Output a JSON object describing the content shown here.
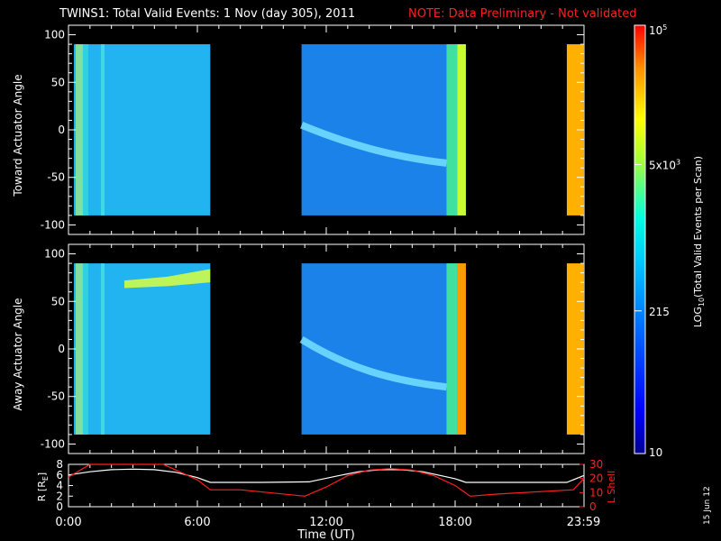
{
  "title": "TWINS1: Total Valid Events:  1 Nov (day 305), 2011",
  "note": "NOTE: Data Preliminary - Not validated",
  "date_stamp": "15 Jun 12",
  "colors": {
    "note": "#ff2020",
    "line_white": "#ffffff",
    "line_red": "#ff2020",
    "background": "#000000"
  },
  "chart_data": [
    {
      "type": "heatmap",
      "ylabel": "Toward Actuator Angle",
      "ylim": [
        -110,
        110
      ],
      "yticks": [
        100,
        50,
        0,
        -50,
        -100
      ],
      "xlim_hours": [
        0,
        24
      ],
      "data_blocks_hours": [
        [
          0.25,
          6.6
        ],
        [
          10.85,
          18.5
        ],
        [
          23.2,
          24
        ]
      ],
      "features": "Yellow-green band near 0:30 UT; trough near 0 deg from ~11:00 declining to about -35 deg by 18:00 UT; bright orange block from 23:15 UT"
    },
    {
      "type": "heatmap",
      "ylabel": "Away Actuator Angle",
      "ylim": [
        -110,
        110
      ],
      "yticks": [
        100,
        50,
        0,
        -50,
        -100
      ],
      "xlim_hours": [
        0,
        24
      ],
      "data_blocks_hours": [
        [
          0.25,
          6.6
        ],
        [
          10.85,
          18.5
        ],
        [
          23.2,
          24
        ]
      ],
      "features": "Yellow band near +70-80 deg from 2:00 to 6:30 UT; trough from ~0 deg at 11:00 declining to about -40 deg by 18:00 UT; orange block from 23:15 UT"
    },
    {
      "type": "line",
      "xlabel": "Time (UT)",
      "xtick_labels": [
        "0:00",
        "6:00",
        "12:00",
        "18:00",
        "23:59"
      ],
      "xtick_hours": [
        0,
        6,
        12,
        18,
        23.98
      ],
      "ylabel_left": "R [Re]",
      "ylim_left": [
        0,
        8
      ],
      "yticks_left": [
        0,
        2,
        4,
        6,
        8
      ],
      "ylabel_right": "L Shell",
      "ylim_right": [
        0,
        30
      ],
      "yticks_right": [
        0,
        10,
        20,
        30
      ],
      "series": [
        {
          "name": "R [Re]",
          "axis": "left",
          "color": "#ffffff",
          "x": [
            0,
            1,
            2,
            3,
            4,
            5,
            6,
            6.6,
            9,
            11.2,
            12.5,
            13.5,
            14.5,
            15.5,
            16.5,
            18,
            18.5,
            20,
            22,
            23.2,
            24
          ],
          "y": [
            6.0,
            6.6,
            7.0,
            7.1,
            7.0,
            6.5,
            5.5,
            4.6,
            4.6,
            4.7,
            5.8,
            6.6,
            7.0,
            7.0,
            6.6,
            5.3,
            4.6,
            4.6,
            4.6,
            4.6,
            5.9
          ]
        },
        {
          "name": "L Shell",
          "axis": "right",
          "color": "#ff2020",
          "x": [
            0,
            1,
            4.4,
            5,
            6,
            6.6,
            8,
            11,
            12,
            13,
            14,
            15,
            16,
            17,
            18,
            18.7,
            20,
            23.5,
            24
          ],
          "y": [
            21,
            30,
            30,
            26,
            19,
            12,
            12,
            7.5,
            14,
            22,
            26,
            27,
            26,
            22,
            15,
            7.5,
            9,
            12,
            20
          ]
        }
      ]
    },
    {
      "type": "heatmap",
      "colorbar_label": "LOG10(Total Valid Events per Scan)",
      "tick_labels": [
        "10",
        "215",
        "5x10^3",
        "10^5"
      ],
      "tick_values": [
        10,
        215,
        5000,
        100000
      ],
      "scale": "log",
      "colors": [
        "#0000a0",
        "#0000ff",
        "#0080ff",
        "#00ffff",
        "#80ff80",
        "#ffff00",
        "#ff8000",
        "#ff0000"
      ]
    }
  ]
}
